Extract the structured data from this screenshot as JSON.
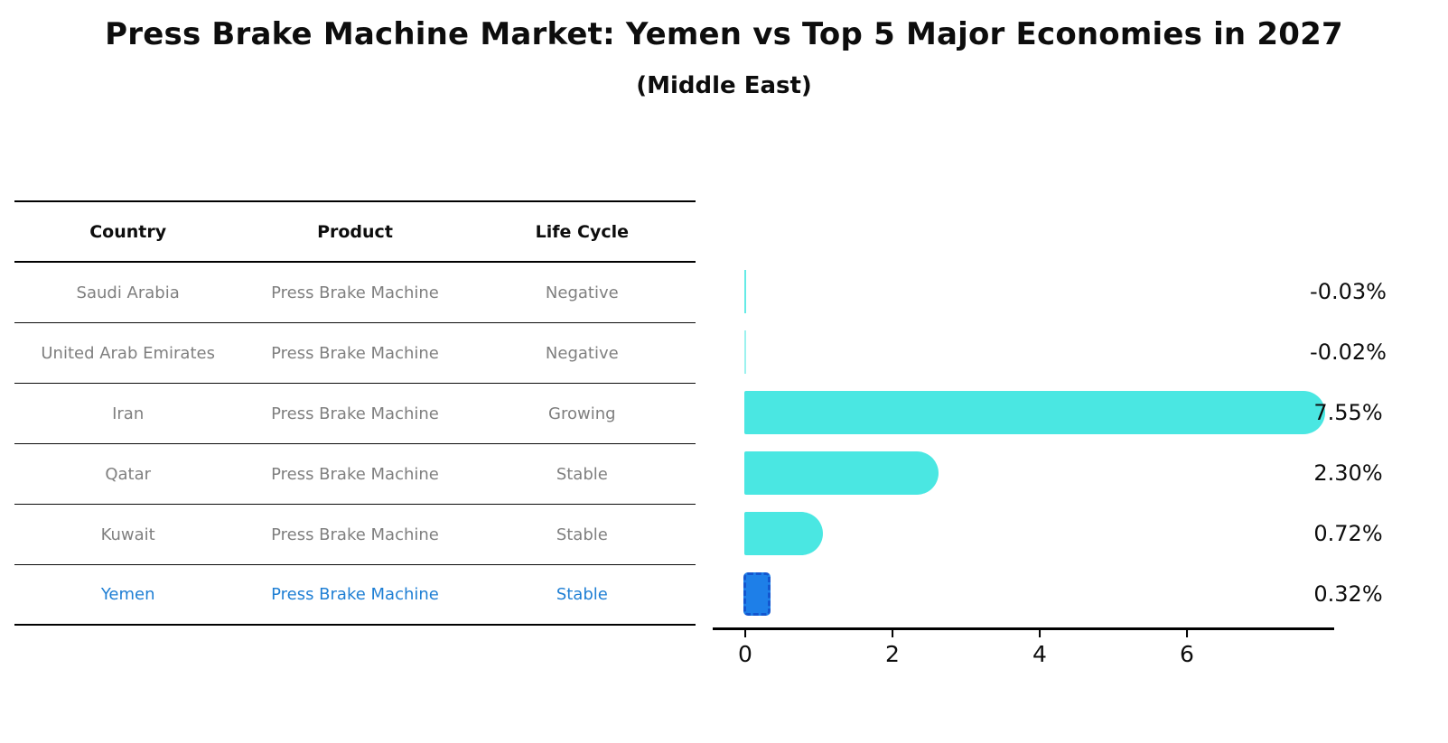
{
  "title": "Press Brake Machine Market: Yemen vs Top 5 Major Economies in 2027",
  "subtitle": "(Middle East)",
  "colors": {
    "bar_cyan": "#4ae7e2",
    "highlight_blue": "#1e7fe8",
    "highlight_border": "#1356cf",
    "highlight_text": "#1f7fd4",
    "table_text": "#7f7f7f",
    "axis_black": "#000000"
  },
  "table": {
    "headers": [
      "Country",
      "Product",
      "Life Cycle"
    ],
    "rows": [
      {
        "country": "Saudi Arabia",
        "product": "Press Brake Machine",
        "life_cycle": "Negative",
        "highlight": false
      },
      {
        "country": "United Arab Emirates",
        "product": "Press Brake Machine",
        "life_cycle": "Negative",
        "highlight": false
      },
      {
        "country": "Iran",
        "product": "Press Brake Machine",
        "life_cycle": "Growing",
        "highlight": false
      },
      {
        "country": "Qatar",
        "product": "Press Brake Machine",
        "life_cycle": "Stable",
        "highlight": false
      },
      {
        "country": "Kuwait",
        "product": "Press Brake Machine",
        "life_cycle": "Stable",
        "highlight": false
      },
      {
        "country": "Yemen",
        "product": "Press Brake Machine",
        "life_cycle": "Stable",
        "highlight": true
      }
    ]
  },
  "chart_data": {
    "type": "bar",
    "orientation": "horizontal",
    "title": "Press Brake Machine Market: Yemen vs Top 5 Major Economies in 2027",
    "subtitle": "(Middle East)",
    "categories": [
      "Saudi Arabia",
      "United Arab Emirates",
      "Iran",
      "Qatar",
      "Kuwait",
      "Yemen"
    ],
    "values": [
      -0.03,
      -0.02,
      7.55,
      2.3,
      0.72,
      0.32
    ],
    "value_labels": [
      "-0.03%",
      "-0.02%",
      "7.55%",
      "2.30%",
      "0.72%",
      "0.32%"
    ],
    "unit": "%",
    "x_ticks": [
      0,
      2,
      4,
      6
    ],
    "xlim": [
      -0.45,
      8.0
    ],
    "grid": false,
    "legend": false,
    "bar_color": "#4ae7e2",
    "highlight": {
      "category": "Yemen",
      "index": 5,
      "bar_color": "#1e7fe8",
      "bar_border": "#1356cf",
      "border_style": "dashed"
    },
    "xlabel": "",
    "ylabel": ""
  }
}
